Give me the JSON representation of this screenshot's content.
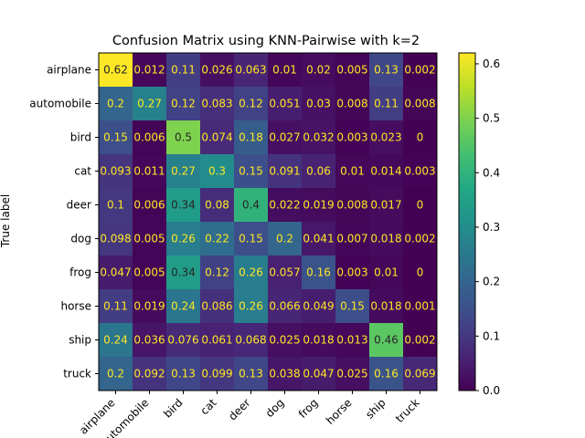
{
  "chart_data": {
    "type": "heatmap",
    "title": "Confusion Matrix using KNN-Pairwise with k=2",
    "ylabel": "True label",
    "xlabel": "",
    "row_labels": [
      "airplane",
      "automobile",
      "bird",
      "cat",
      "deer",
      "dog",
      "frog",
      "horse",
      "ship",
      "truck"
    ],
    "col_labels": [
      "airplane",
      "automobile",
      "bird",
      "cat",
      "deer",
      "dog",
      "frog",
      "horse",
      "ship",
      "truck"
    ],
    "values": [
      [
        0.62,
        0.012,
        0.11,
        0.026,
        0.063,
        0.01,
        0.02,
        0.005,
        0.13,
        0.002
      ],
      [
        0.2,
        0.27,
        0.12,
        0.083,
        0.12,
        0.051,
        0.03,
        0.008,
        0.11,
        0.008
      ],
      [
        0.15,
        0.006,
        0.5,
        0.074,
        0.18,
        0.027,
        0.032,
        0.003,
        0.023,
        0
      ],
      [
        0.093,
        0.011,
        0.27,
        0.3,
        0.15,
        0.091,
        0.06,
        0.01,
        0.014,
        0.003
      ],
      [
        0.1,
        0.006,
        0.34,
        0.08,
        0.4,
        0.022,
        0.019,
        0.008,
        0.017,
        0
      ],
      [
        0.098,
        0.005,
        0.26,
        0.22,
        0.15,
        0.2,
        0.041,
        0.007,
        0.018,
        0.002
      ],
      [
        0.047,
        0.005,
        0.34,
        0.12,
        0.26,
        0.057,
        0.16,
        0.003,
        0.01,
        0
      ],
      [
        0.11,
        0.019,
        0.24,
        0.086,
        0.26,
        0.066,
        0.049,
        0.15,
        0.018,
        0.001
      ],
      [
        0.24,
        0.036,
        0.076,
        0.061,
        0.068,
        0.025,
        0.018,
        0.013,
        0.46,
        0.002
      ],
      [
        0.2,
        0.092,
        0.13,
        0.099,
        0.13,
        0.038,
        0.047,
        0.025,
        0.16,
        0.069
      ]
    ],
    "colormap": "viridis",
    "value_range": [
      0,
      0.62
    ],
    "colorbar": {
      "ticks": [
        0.0,
        0.1,
        0.2,
        0.3,
        0.4,
        0.5,
        0.6
      ],
      "tick_labels": [
        "0.0",
        "0.1",
        "0.2",
        "0.3",
        "0.4",
        "0.5",
        "0.6"
      ]
    }
  }
}
